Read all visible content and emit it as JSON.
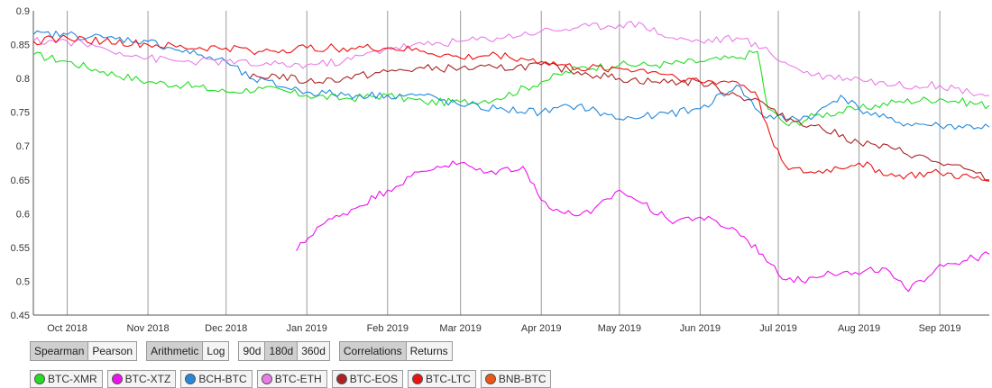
{
  "chart_data": {
    "type": "line",
    "title": "",
    "xlabel": "",
    "ylabel": "",
    "ylim": [
      0.45,
      0.9
    ],
    "xlim": [
      "2018-09-18",
      "2019-09-20"
    ],
    "y_ticks": [
      0.45,
      0.5,
      0.55,
      0.6,
      0.65,
      0.7,
      0.75,
      0.8,
      0.85,
      0.9
    ],
    "x_ticks": [
      {
        "date": "2018-10-01",
        "label": "Oct 2018"
      },
      {
        "date": "2018-11-01",
        "label": "Nov 2018"
      },
      {
        "date": "2018-12-01",
        "label": "Dec 2018"
      },
      {
        "date": "2019-01-01",
        "label": "Jan 2019"
      },
      {
        "date": "2019-02-01",
        "label": "Feb 2019"
      },
      {
        "date": "2019-03-01",
        "label": "Mar 2019"
      },
      {
        "date": "2019-04-01",
        "label": "Apr 2019"
      },
      {
        "date": "2019-05-01",
        "label": "May 2019"
      },
      {
        "date": "2019-06-01",
        "label": "Jun 2019"
      },
      {
        "date": "2019-07-01",
        "label": "Jul 2019"
      },
      {
        "date": "2019-08-01",
        "label": "Aug 2019"
      },
      {
        "date": "2019-09-01",
        "label": "Sep 2019"
      }
    ],
    "grid": true,
    "series": [
      {
        "name": "BTC-XMR",
        "color": "#22dd22",
        "points": [
          [
            "2018-09-18",
            0.835
          ],
          [
            "2018-10-01",
            0.825
          ],
          [
            "2018-10-15",
            0.81
          ],
          [
            "2018-11-01",
            0.795
          ],
          [
            "2018-11-15",
            0.79
          ],
          [
            "2018-12-01",
            0.78
          ],
          [
            "2018-12-15",
            0.785
          ],
          [
            "2019-01-01",
            0.775
          ],
          [
            "2019-01-15",
            0.77
          ],
          [
            "2019-02-01",
            0.775
          ],
          [
            "2019-02-15",
            0.765
          ],
          [
            "2019-03-01",
            0.765
          ],
          [
            "2019-03-15",
            0.77
          ],
          [
            "2019-04-01",
            0.795
          ],
          [
            "2019-04-15",
            0.815
          ],
          [
            "2019-05-01",
            0.82
          ],
          [
            "2019-05-15",
            0.82
          ],
          [
            "2019-06-01",
            0.825
          ],
          [
            "2019-06-15",
            0.83
          ],
          [
            "2019-06-23",
            0.84
          ],
          [
            "2019-06-27",
            0.755
          ],
          [
            "2019-07-05",
            0.73
          ],
          [
            "2019-07-15",
            0.745
          ],
          [
            "2019-08-01",
            0.755
          ],
          [
            "2019-08-15",
            0.765
          ],
          [
            "2019-09-01",
            0.77
          ],
          [
            "2019-09-20",
            0.76
          ]
        ]
      },
      {
        "name": "BTC-XTZ",
        "color": "#ee11ee",
        "points": [
          [
            "2018-12-28",
            0.545
          ],
          [
            "2019-01-05",
            0.58
          ],
          [
            "2019-01-15",
            0.6
          ],
          [
            "2019-02-01",
            0.635
          ],
          [
            "2019-02-10",
            0.655
          ],
          [
            "2019-02-20",
            0.67
          ],
          [
            "2019-03-01",
            0.675
          ],
          [
            "2019-03-10",
            0.66
          ],
          [
            "2019-03-25",
            0.67
          ],
          [
            "2019-04-01",
            0.62
          ],
          [
            "2019-04-10",
            0.6
          ],
          [
            "2019-04-20",
            0.6
          ],
          [
            "2019-05-01",
            0.635
          ],
          [
            "2019-05-10",
            0.615
          ],
          [
            "2019-05-20",
            0.59
          ],
          [
            "2019-06-01",
            0.595
          ],
          [
            "2019-06-15",
            0.575
          ],
          [
            "2019-06-25",
            0.54
          ],
          [
            "2019-07-01",
            0.51
          ],
          [
            "2019-07-10",
            0.5
          ],
          [
            "2019-07-20",
            0.515
          ],
          [
            "2019-08-01",
            0.51
          ],
          [
            "2019-08-10",
            0.52
          ],
          [
            "2019-08-20",
            0.485
          ],
          [
            "2019-09-01",
            0.525
          ],
          [
            "2019-09-10",
            0.53
          ],
          [
            "2019-09-20",
            0.54
          ]
        ]
      },
      {
        "name": "BCH-BTC",
        "color": "#2288dd",
        "points": [
          [
            "2018-09-18",
            0.865
          ],
          [
            "2018-10-01",
            0.865
          ],
          [
            "2018-10-15",
            0.86
          ],
          [
            "2018-11-01",
            0.855
          ],
          [
            "2018-11-10",
            0.845
          ],
          [
            "2018-11-20",
            0.835
          ],
          [
            "2018-12-01",
            0.825
          ],
          [
            "2018-12-10",
            0.8
          ],
          [
            "2019-01-01",
            0.78
          ],
          [
            "2019-01-20",
            0.775
          ],
          [
            "2019-02-01",
            0.775
          ],
          [
            "2019-02-15",
            0.775
          ],
          [
            "2019-03-01",
            0.76
          ],
          [
            "2019-03-15",
            0.755
          ],
          [
            "2019-04-01",
            0.75
          ],
          [
            "2019-04-15",
            0.76
          ],
          [
            "2019-05-01",
            0.74
          ],
          [
            "2019-05-15",
            0.745
          ],
          [
            "2019-06-01",
            0.755
          ],
          [
            "2019-06-15",
            0.79
          ],
          [
            "2019-06-25",
            0.745
          ],
          [
            "2019-07-05",
            0.74
          ],
          [
            "2019-07-15",
            0.745
          ],
          [
            "2019-07-25",
            0.775
          ],
          [
            "2019-08-01",
            0.755
          ],
          [
            "2019-08-15",
            0.735
          ],
          [
            "2019-09-01",
            0.73
          ],
          [
            "2019-09-20",
            0.728
          ]
        ]
      },
      {
        "name": "BTC-ETH",
        "color": "#e87de8",
        "points": [
          [
            "2018-09-18",
            0.855
          ],
          [
            "2018-10-01",
            0.855
          ],
          [
            "2018-10-15",
            0.845
          ],
          [
            "2018-11-01",
            0.83
          ],
          [
            "2018-11-15",
            0.825
          ],
          [
            "2018-12-01",
            0.825
          ],
          [
            "2018-12-15",
            0.82
          ],
          [
            "2019-01-01",
            0.82
          ],
          [
            "2019-01-15",
            0.825
          ],
          [
            "2019-02-01",
            0.845
          ],
          [
            "2019-02-15",
            0.85
          ],
          [
            "2019-03-01",
            0.855
          ],
          [
            "2019-03-15",
            0.86
          ],
          [
            "2019-04-01",
            0.87
          ],
          [
            "2019-04-15",
            0.875
          ],
          [
            "2019-05-01",
            0.88
          ],
          [
            "2019-05-10",
            0.88
          ],
          [
            "2019-05-20",
            0.86
          ],
          [
            "2019-06-01",
            0.855
          ],
          [
            "2019-06-15",
            0.86
          ],
          [
            "2019-06-25",
            0.845
          ],
          [
            "2019-07-05",
            0.82
          ],
          [
            "2019-07-15",
            0.805
          ],
          [
            "2019-08-01",
            0.8
          ],
          [
            "2019-08-15",
            0.79
          ],
          [
            "2019-09-01",
            0.79
          ],
          [
            "2019-09-20",
            0.775
          ]
        ]
      },
      {
        "name": "BTC-EOS",
        "color": "#aa2222",
        "points": [
          [
            "2018-12-10",
            0.8
          ],
          [
            "2018-12-20",
            0.805
          ],
          [
            "2019-01-01",
            0.795
          ],
          [
            "2019-01-15",
            0.8
          ],
          [
            "2019-02-01",
            0.81
          ],
          [
            "2019-02-15",
            0.815
          ],
          [
            "2019-03-01",
            0.815
          ],
          [
            "2019-03-15",
            0.815
          ],
          [
            "2019-04-01",
            0.82
          ],
          [
            "2019-04-15",
            0.81
          ],
          [
            "2019-05-01",
            0.8
          ],
          [
            "2019-05-15",
            0.795
          ],
          [
            "2019-06-01",
            0.795
          ],
          [
            "2019-06-15",
            0.775
          ],
          [
            "2019-06-25",
            0.765
          ],
          [
            "2019-07-01",
            0.745
          ],
          [
            "2019-07-15",
            0.73
          ],
          [
            "2019-08-01",
            0.705
          ],
          [
            "2019-08-15",
            0.695
          ],
          [
            "2019-09-01",
            0.675
          ],
          [
            "2019-09-15",
            0.66
          ],
          [
            "2019-09-20",
            0.65
          ]
        ]
      },
      {
        "name": "BTC-LTC",
        "color": "#ee1111",
        "points": [
          [
            "2018-09-18",
            0.855
          ],
          [
            "2018-10-01",
            0.86
          ],
          [
            "2018-10-15",
            0.855
          ],
          [
            "2018-11-01",
            0.85
          ],
          [
            "2018-11-15",
            0.845
          ],
          [
            "2018-12-01",
            0.845
          ],
          [
            "2018-12-15",
            0.84
          ],
          [
            "2019-01-01",
            0.845
          ],
          [
            "2019-01-15",
            0.845
          ],
          [
            "2019-02-01",
            0.845
          ],
          [
            "2019-02-15",
            0.84
          ],
          [
            "2019-03-01",
            0.83
          ],
          [
            "2019-03-15",
            0.835
          ],
          [
            "2019-04-01",
            0.825
          ],
          [
            "2019-04-15",
            0.815
          ],
          [
            "2019-05-01",
            0.815
          ],
          [
            "2019-05-15",
            0.81
          ],
          [
            "2019-06-01",
            0.795
          ],
          [
            "2019-06-15",
            0.795
          ],
          [
            "2019-06-22",
            0.78
          ],
          [
            "2019-06-28",
            0.715
          ],
          [
            "2019-07-05",
            0.665
          ],
          [
            "2019-07-15",
            0.66
          ],
          [
            "2019-08-01",
            0.675
          ],
          [
            "2019-08-15",
            0.655
          ],
          [
            "2019-09-01",
            0.66
          ],
          [
            "2019-09-20",
            0.648
          ]
        ]
      },
      {
        "name": "BNB-BTC",
        "color": "#ee5511",
        "points": []
      }
    ]
  },
  "controls": {
    "method_group": [
      "Spearman",
      "Pearson"
    ],
    "scale_group": [
      "Arithmetic",
      "Log"
    ],
    "window_group": [
      "90d",
      "180d",
      "360d"
    ],
    "view_group": [
      "Correlations",
      "Returns"
    ],
    "active": [
      "Spearman",
      "Arithmetic",
      "180d",
      "Correlations"
    ]
  },
  "legend": [
    {
      "name": "BTC-XMR",
      "color": "#22dd22"
    },
    {
      "name": "BTC-XTZ",
      "color": "#ee11ee"
    },
    {
      "name": "BCH-BTC",
      "color": "#2288dd"
    },
    {
      "name": "BTC-ETH",
      "color": "#e87de8"
    },
    {
      "name": "BTC-EOS",
      "color": "#aa2222"
    },
    {
      "name": "BTC-LTC",
      "color": "#ee1111"
    },
    {
      "name": "BNB-BTC",
      "color": "#ee5511"
    }
  ]
}
